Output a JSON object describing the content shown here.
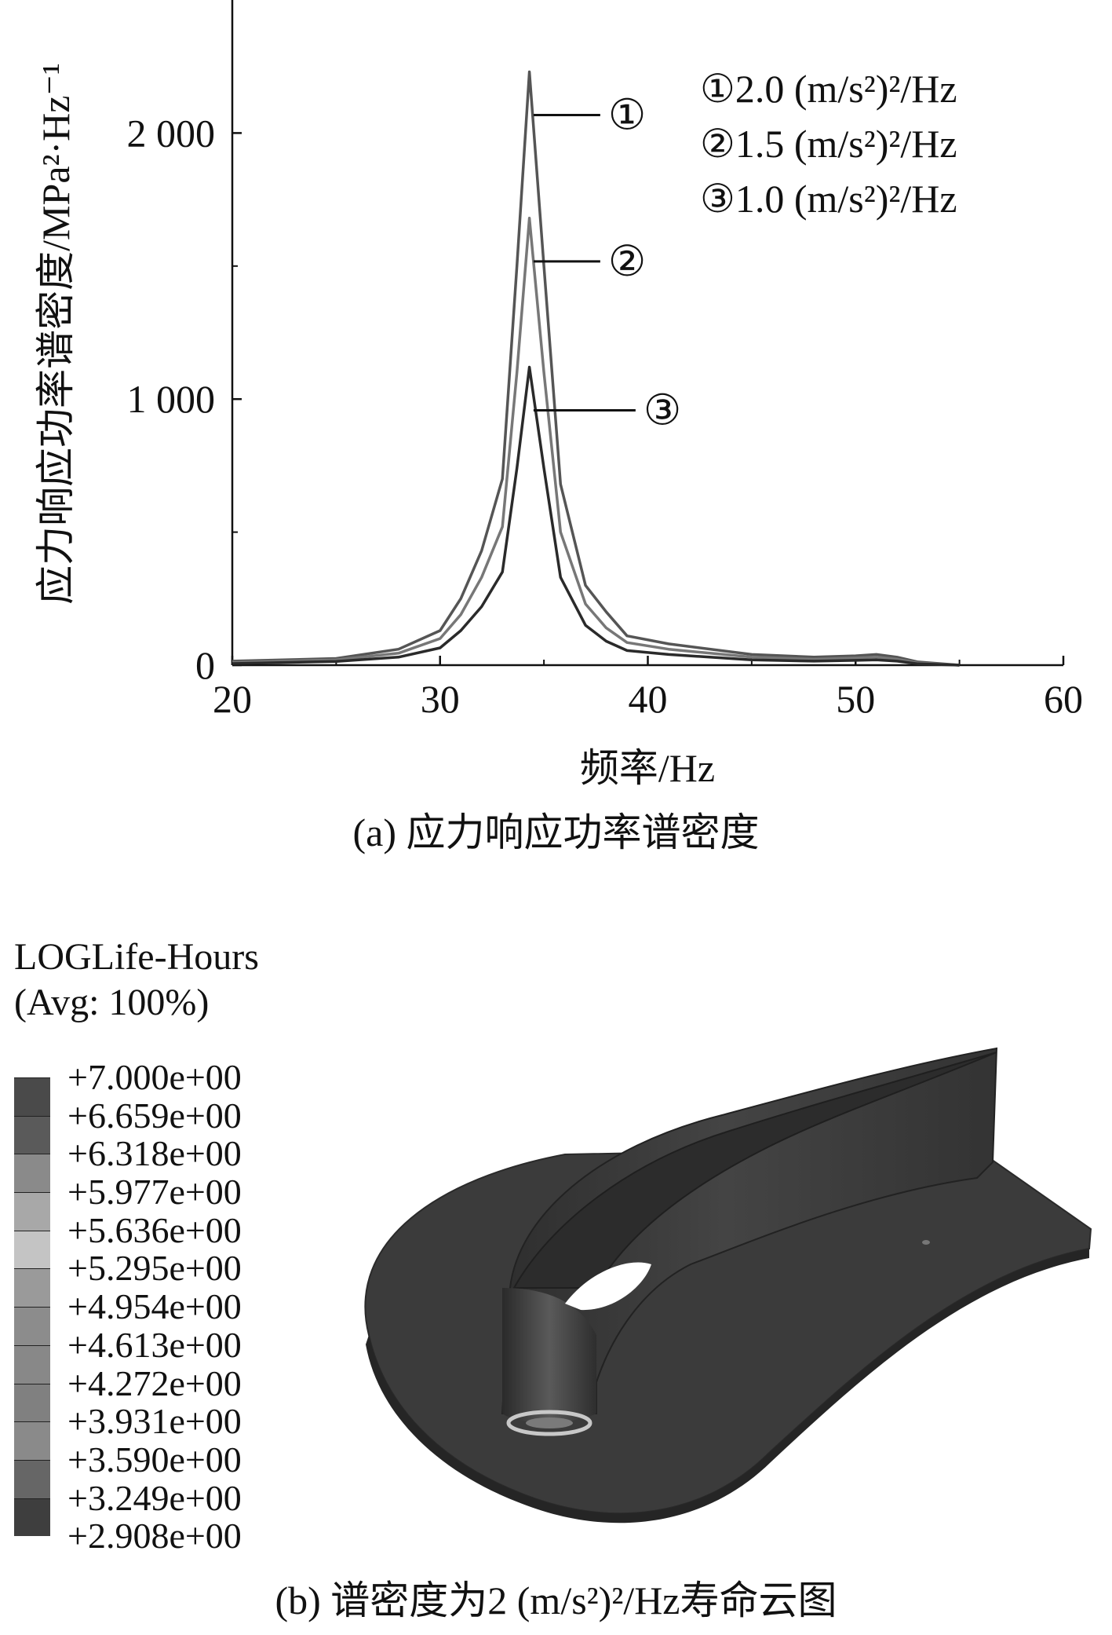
{
  "chart_data": {
    "type": "line",
    "title": "",
    "xlabel": "频率/Hz",
    "ylabel": "应力响应功率谱密度/MPa²·Hz⁻¹",
    "xlim": [
      20,
      60
    ],
    "ylim": [
      0,
      2500
    ],
    "xticks": [
      "20",
      "30",
      "40",
      "50",
      "60"
    ],
    "yticks": [
      "0",
      "1 000",
      "2 000"
    ],
    "legend_position": "top-right",
    "legend": [
      "①2.0 (m/s²)²/Hz",
      "②1.5 (m/s²)²/Hz",
      "③1.0 (m/s²)²/Hz"
    ],
    "series": [
      {
        "name": "①",
        "color": "#555555",
        "x": [
          20,
          25,
          28,
          30,
          31,
          32,
          33,
          33.7,
          34.3,
          35,
          35.8,
          37,
          38,
          39,
          41,
          45,
          48,
          50,
          51,
          52,
          53,
          55
        ],
        "y": [
          15,
          25,
          60,
          130,
          250,
          430,
          700,
          1500,
          2230,
          1500,
          680,
          300,
          200,
          110,
          80,
          40,
          30,
          35,
          40,
          30,
          12,
          0
        ]
      },
      {
        "name": "②",
        "color": "#777777",
        "x": [
          20,
          25,
          28,
          30,
          31,
          32,
          33,
          33.7,
          34.3,
          35,
          35.8,
          37,
          38,
          39,
          41,
          45,
          48,
          50,
          51,
          52,
          53,
          55
        ],
        "y": [
          10,
          20,
          45,
          100,
          190,
          330,
          520,
          1100,
          1680,
          1100,
          500,
          230,
          140,
          85,
          60,
          30,
          22,
          27,
          30,
          22,
          8,
          0
        ]
      },
      {
        "name": "③",
        "color": "#2a2a2a",
        "x": [
          20,
          25,
          28,
          30,
          31,
          32,
          33,
          33.7,
          34.3,
          35,
          35.8,
          37,
          38,
          39,
          41,
          45,
          48,
          50,
          51,
          52,
          53,
          55
        ],
        "y": [
          6,
          14,
          30,
          65,
          130,
          220,
          350,
          740,
          1120,
          740,
          330,
          150,
          90,
          55,
          40,
          20,
          15,
          18,
          20,
          15,
          5,
          0
        ]
      }
    ],
    "curve_labels": [
      "①",
      "②",
      "③"
    ]
  },
  "captions": {
    "a": "(a) 应力响应功率谱密度",
    "b": "(b) 谱密度为2 (m/s²)²/Hz寿命云图"
  },
  "contour_legend": {
    "title": "LOGLife-Hours",
    "subtitle": "(Avg: 100%)",
    "values": [
      "+7.000e+00",
      "+6.659e+00",
      "+6.318e+00",
      "+5.977e+00",
      "+5.636e+00",
      "+5.295e+00",
      "+4.954e+00",
      "+4.613e+00",
      "+4.272e+00",
      "+3.931e+00",
      "+3.590e+00",
      "+3.249e+00",
      "+2.908e+00"
    ],
    "colors": [
      "#4a4a4a",
      "#5a5a5a",
      "#8a8a8a",
      "#a8a8a8",
      "#c4c4c4",
      "#9a9a9a",
      "#8c8c8c",
      "#888888",
      "#808080",
      "#8a8a8a",
      "#666666",
      "#3e3e3e",
      "#303030"
    ]
  },
  "model": {
    "body_color": "#3c3c3c",
    "highlight_color": "#bdbdbd"
  }
}
